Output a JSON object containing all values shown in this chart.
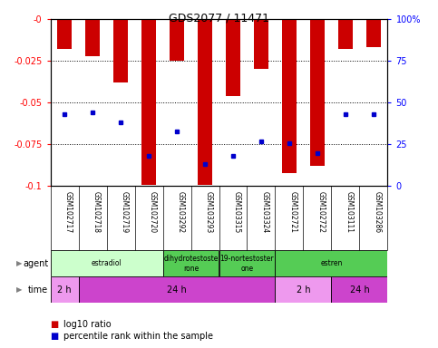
{
  "title": "GDS2077 / 11471",
  "samples": [
    "GSM102717",
    "GSM102718",
    "GSM102719",
    "GSM102720",
    "GSM103292",
    "GSM103293",
    "GSM103315",
    "GSM103324",
    "GSM102721",
    "GSM102722",
    "GSM103111",
    "GSM103286"
  ],
  "log10_ratio": [
    -0.018,
    -0.022,
    -0.038,
    -0.099,
    -0.025,
    -0.099,
    -0.046,
    -0.03,
    -0.092,
    -0.088,
    -0.018,
    -0.017
  ],
  "percentile_rank_pct": [
    43,
    44,
    38,
    18,
    33,
    13,
    18,
    27,
    26,
    20,
    43,
    43
  ],
  "ylim_min": -0.1,
  "ylim_max": 0.0,
  "yticks": [
    0.0,
    -0.025,
    -0.05,
    -0.075,
    -0.1
  ],
  "ytick_labels": [
    "-0",
    "-0.025",
    "-0.05",
    "-0.075",
    "-0.1"
  ],
  "right_ytick_pcts": [
    100,
    75,
    50,
    25,
    0
  ],
  "right_ytick_labels": [
    "100%",
    "75",
    "50",
    "25",
    "0"
  ],
  "bar_color": "#cc0000",
  "dot_color": "#0000cc",
  "agent_groups": [
    {
      "label": "estradiol",
      "start": 0,
      "end": 4,
      "color": "#ccffcc"
    },
    {
      "label": "dihydrotestoste\nrone",
      "start": 4,
      "end": 6,
      "color": "#55cc55"
    },
    {
      "label": "19-nortestoster\none",
      "start": 6,
      "end": 8,
      "color": "#55cc55"
    },
    {
      "label": "estren",
      "start": 8,
      "end": 12,
      "color": "#55cc55"
    }
  ],
  "time_groups": [
    {
      "label": "2 h",
      "start": 0,
      "end": 1,
      "color": "#ee99ee"
    },
    {
      "label": "24 h",
      "start": 1,
      "end": 8,
      "color": "#cc44cc"
    },
    {
      "label": "2 h",
      "start": 8,
      "end": 10,
      "color": "#ee99ee"
    },
    {
      "label": "24 h",
      "start": 10,
      "end": 12,
      "color": "#cc44cc"
    }
  ],
  "legend_red_label": "log10 ratio",
  "legend_blue_label": "percentile rank within the sample",
  "bg_color": "#ffffff",
  "label_area_color": "#c8c8c8",
  "figsize": [
    4.83,
    3.84
  ],
  "dpi": 100
}
